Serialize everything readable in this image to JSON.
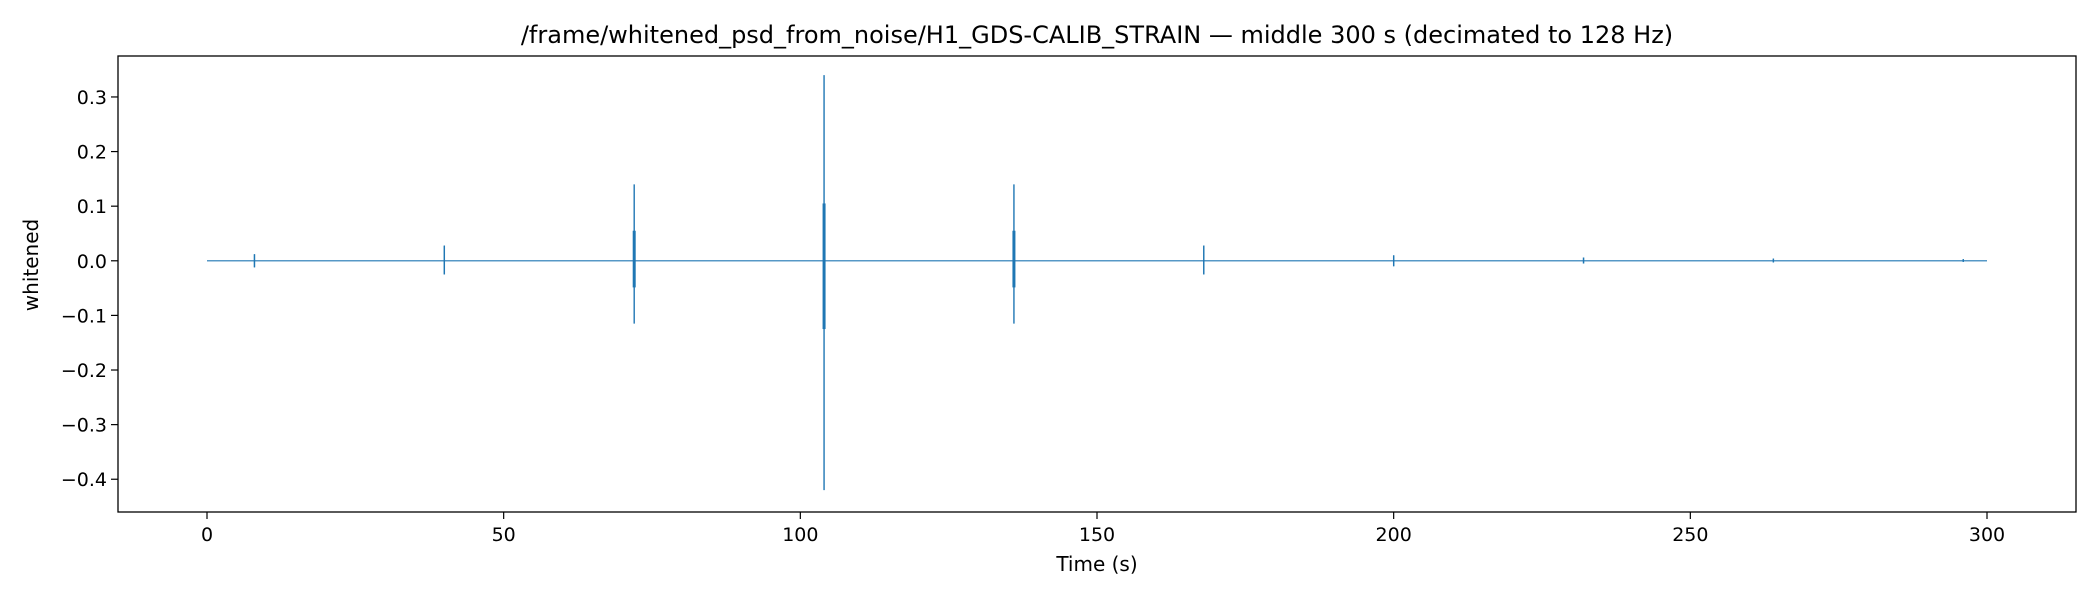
{
  "chart_data": {
    "type": "line",
    "title": "/frame/whitened_psd_from_noise/H1_GDS-CALIB_STRAIN — middle 300 s (decimated to 128 Hz)",
    "xlabel": "Time (s)",
    "ylabel": "whitened",
    "xlim": [
      -15,
      315
    ],
    "ylim": [
      -0.46,
      0.375
    ],
    "xticks": [
      0,
      50,
      100,
      150,
      200,
      250,
      300
    ],
    "yticks": [
      -0.4,
      -0.3,
      -0.2,
      -0.1,
      0.0,
      0.1,
      0.2,
      0.3
    ],
    "xtick_labels": [
      "0",
      "50",
      "100",
      "150",
      "200",
      "250",
      "300"
    ],
    "ytick_labels": [
      "−0.4",
      "−0.3",
      "−0.2",
      "−0.1",
      "0.0",
      "0.1",
      "0.2",
      "0.3"
    ],
    "grid": false,
    "legend": "none",
    "line_color": "#1f77b4",
    "x_range": [
      0,
      300
    ],
    "baseline": 0.0,
    "bursts": [
      {
        "t": 8,
        "max": 0.012,
        "min": -0.012
      },
      {
        "t": 40,
        "max": 0.028,
        "min": -0.025
      },
      {
        "t": 72,
        "max": 0.14,
        "min": -0.115
      },
      {
        "t": 104,
        "max": 0.34,
        "min": -0.42
      },
      {
        "t": 136,
        "max": 0.14,
        "min": -0.115
      },
      {
        "t": 168,
        "max": 0.028,
        "min": -0.025
      },
      {
        "t": 200,
        "max": 0.01,
        "min": -0.01
      },
      {
        "t": 232,
        "max": 0.006,
        "min": -0.005
      },
      {
        "t": 264,
        "max": 0.004,
        "min": -0.003
      },
      {
        "t": 296,
        "max": 0.003,
        "min": -0.002
      }
    ]
  }
}
